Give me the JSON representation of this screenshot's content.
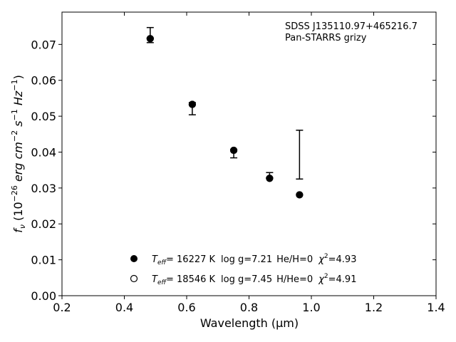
{
  "chart_data": {
    "type": "scatter",
    "annotation_lines": [
      "SDSS J135110.97+465216.7",
      "Pan-STARRS grizy"
    ],
    "xlabel": "Wavelength (μm)",
    "ylabel_parts": [
      "f",
      "ν",
      " (10",
      "−26",
      " erg cm",
      "−2",
      " s",
      "−1",
      " Hz",
      "−1",
      ")"
    ],
    "xlim": [
      0.2,
      1.4
    ],
    "ylim": [
      0.0,
      0.079
    ],
    "xticks": [
      0.2,
      0.4,
      0.6,
      0.8,
      1.0,
      1.2,
      1.4
    ],
    "xtick_labels": [
      "0.2",
      "0.4",
      "0.6",
      "0.8",
      "1.0",
      "1.2",
      "1.4"
    ],
    "yticks": [
      0.0,
      0.01,
      0.02,
      0.03,
      0.04,
      0.05,
      0.06,
      0.07
    ],
    "ytick_labels": [
      "0.00",
      "0.01",
      "0.02",
      "0.03",
      "0.04",
      "0.05",
      "0.06",
      "0.07"
    ],
    "observed": {
      "x": [
        0.483,
        0.618,
        0.751,
        0.866,
        0.962
      ],
      "y": [
        0.0726,
        0.0521,
        0.04,
        0.0335,
        0.0393
      ],
      "yerr_low": [
        0.0021,
        0.0017,
        0.0016,
        0.0008,
        0.0068
      ],
      "yerr_high": [
        0.0021,
        0.0017,
        0.0007,
        0.0008,
        0.0068
      ]
    },
    "models": [
      {
        "marker": "filled",
        "x": [
          0.483,
          0.618,
          0.751,
          0.866,
          0.962
        ],
        "y": [
          0.0716,
          0.0533,
          0.0405,
          0.0327,
          0.0281
        ],
        "legend": {
          "teff_sub": "eff",
          "teff_value": "= 16227 K",
          "logg": "log g=7.21",
          "comp": "He/H=0",
          "chi": "χ",
          "chi_sup": "2",
          "chi_value": "=4.93"
        }
      },
      {
        "marker": "open",
        "x": [
          0.483,
          0.618,
          0.751,
          0.866,
          0.962
        ],
        "y": [
          0.0716,
          0.0533,
          0.0405,
          0.0327,
          0.0281
        ],
        "legend": {
          "teff_sub": "eff",
          "teff_value": "= 18546 K",
          "logg": "log g=7.45",
          "comp": "H/He=0",
          "chi": "χ",
          "chi_sup": "2",
          "chi_value": "=4.91"
        }
      }
    ],
    "legend_position": "bottom-center",
    "annotation_position": "top-right",
    "grid": false
  }
}
